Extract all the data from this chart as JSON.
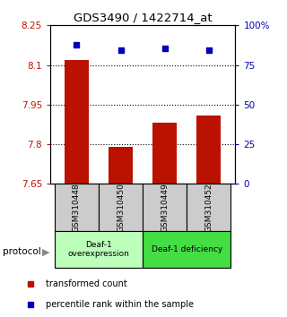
{
  "title": "GDS3490 / 1422714_at",
  "samples": [
    "GSM310448",
    "GSM310450",
    "GSM310449",
    "GSM310452"
  ],
  "bar_values": [
    8.12,
    7.79,
    7.88,
    7.91
  ],
  "percentile_values": [
    87.5,
    84.5,
    85.5,
    84.5
  ],
  "ylim_left": [
    7.65,
    8.25
  ],
  "yticks_left": [
    7.65,
    7.8,
    7.95,
    8.1,
    8.25
  ],
  "ytick_labels_left": [
    "7.65",
    "7.8",
    "7.95",
    "8.1",
    "8.25"
  ],
  "ylim_right": [
    0,
    100
  ],
  "yticks_right": [
    0,
    25,
    50,
    75,
    100
  ],
  "ytick_labels_right": [
    "0",
    "25",
    "50",
    "75",
    "100%"
  ],
  "bar_color": "#bb1100",
  "percentile_color": "#0000bb",
  "groups": [
    {
      "label": "Deaf-1\noverexpression",
      "samples": [
        0,
        1
      ],
      "color": "#bbffbb"
    },
    {
      "label": "Deaf-1 deficiency",
      "samples": [
        2,
        3
      ],
      "color": "#44dd44"
    }
  ],
  "protocol_label": "protocol",
  "legend_bar_label": "transformed count",
  "legend_perc_label": "percentile rank within the sample",
  "background_color": "#ffffff",
  "plot_bg_color": "#ffffff",
  "sample_box_color": "#cccccc",
  "grid_dotted_ticks": [
    7.8,
    7.95,
    8.1
  ]
}
